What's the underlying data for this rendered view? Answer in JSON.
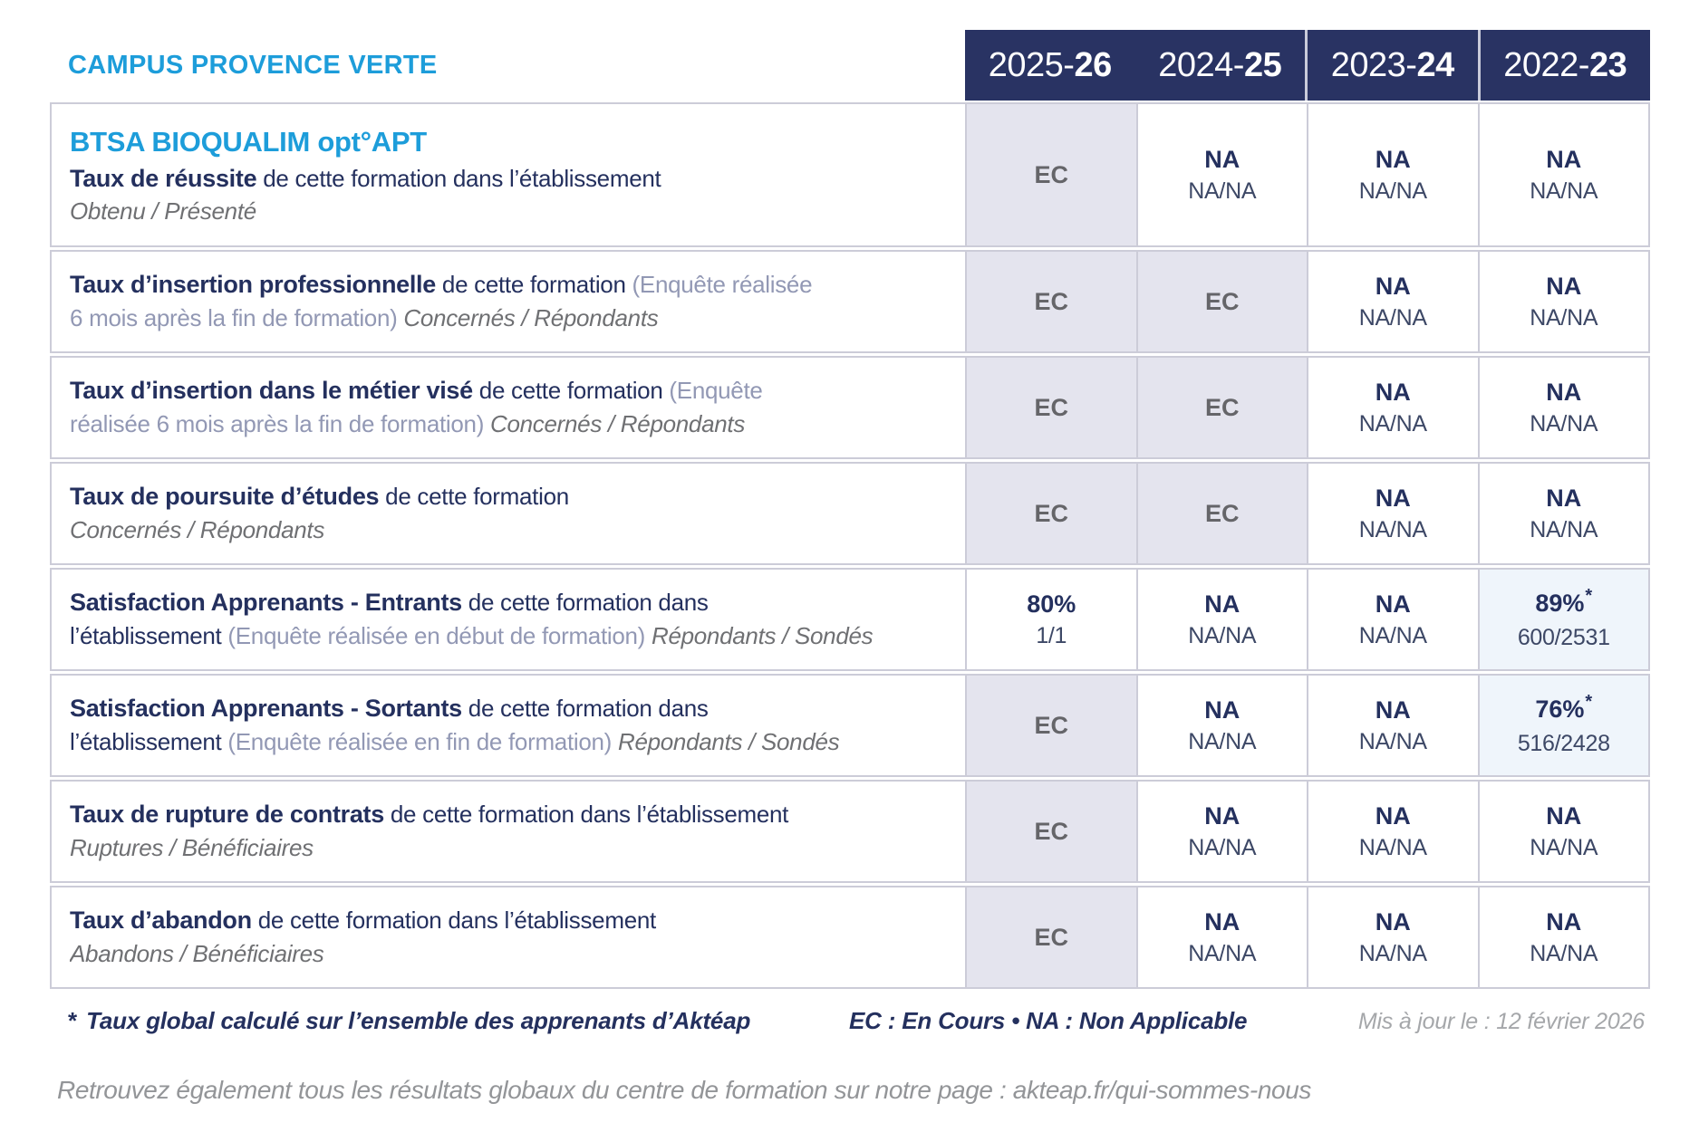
{
  "header": {
    "campus": "CAMPUS PROVENCE VERTE",
    "years": [
      {
        "prefix": "2025-",
        "bold": "26",
        "separated": false
      },
      {
        "prefix": "2024-",
        "bold": "25",
        "separated": false
      },
      {
        "prefix": "2023-",
        "bold": "24",
        "separated": true
      },
      {
        "prefix": "2022-",
        "bold": "23",
        "separated": true
      }
    ]
  },
  "program": "BTSA BIOQUALIM opt°APT",
  "rows": [
    {
      "id": "taux-de-reussite",
      "lines": [
        [
          {
            "s": "prog",
            "t": "BTSA BIOQUALIM opt°APT"
          }
        ],
        [
          {
            "s": "b",
            "t": "Taux de réussite"
          },
          {
            "s": "n",
            "t": " de cette formation dans l’établissement"
          }
        ],
        [
          {
            "s": "i",
            "t": "Obtenu / Présenté"
          }
        ]
      ],
      "cells": [
        {
          "v": "EC",
          "bg": "ec"
        },
        {
          "v": "NA",
          "d": "NA/NA"
        },
        {
          "v": "NA",
          "d": "NA/NA"
        },
        {
          "v": "NA",
          "d": "NA/NA"
        }
      ]
    },
    {
      "id": "taux-insertion-professionnelle",
      "lines": [
        [
          {
            "s": "b",
            "t": "Taux d’insertion professionnelle"
          },
          {
            "s": "n",
            "t": " de cette formation "
          },
          {
            "s": "p",
            "t": "(Enquête réalisée"
          }
        ],
        [
          {
            "s": "p",
            "t": "6 mois après la fin de formation) "
          },
          {
            "s": "i",
            "t": "Concernés / Répondants"
          }
        ]
      ],
      "cells": [
        {
          "v": "EC",
          "bg": "ec"
        },
        {
          "v": "EC",
          "bg": "ec"
        },
        {
          "v": "NA",
          "d": "NA/NA"
        },
        {
          "v": "NA",
          "d": "NA/NA"
        }
      ]
    },
    {
      "id": "taux-insertion-metier-vise",
      "lines": [
        [
          {
            "s": "b",
            "t": "Taux d’insertion dans le métier visé"
          },
          {
            "s": "n",
            "t": " de cette formation "
          },
          {
            "s": "p",
            "t": "(Enquête"
          }
        ],
        [
          {
            "s": "p",
            "t": "réalisée 6 mois après la fin de formation) "
          },
          {
            "s": "i",
            "t": "Concernés / Répondants"
          }
        ]
      ],
      "cells": [
        {
          "v": "EC",
          "bg": "ec"
        },
        {
          "v": "EC",
          "bg": "ec"
        },
        {
          "v": "NA",
          "d": "NA/NA"
        },
        {
          "v": "NA",
          "d": "NA/NA"
        }
      ]
    },
    {
      "id": "taux-poursuite-etudes",
      "lines": [
        [
          {
            "s": "b",
            "t": "Taux de poursuite d’études"
          },
          {
            "s": "n",
            "t": " de cette formation"
          }
        ],
        [
          {
            "s": "i",
            "t": "Concernés / Répondants"
          }
        ]
      ],
      "cells": [
        {
          "v": "EC",
          "bg": "ec"
        },
        {
          "v": "EC",
          "bg": "ec"
        },
        {
          "v": "NA",
          "d": "NA/NA"
        },
        {
          "v": "NA",
          "d": "NA/NA"
        }
      ]
    },
    {
      "id": "satisfaction-apprenants-entrants",
      "lines": [
        [
          {
            "s": "b",
            "t": "Satisfaction Apprenants - Entrants"
          },
          {
            "s": "n",
            "t": " de cette formation dans"
          }
        ],
        [
          {
            "s": "n",
            "t": "l’établissement "
          },
          {
            "s": "p",
            "t": "(Enquête réalisée en début de formation) "
          },
          {
            "s": "i",
            "t": "Répondants / Sondés"
          }
        ]
      ],
      "cells": [
        {
          "v": "80%",
          "d": "1/1"
        },
        {
          "v": "NA",
          "d": "NA/NA"
        },
        {
          "v": "NA",
          "d": "NA/NA"
        },
        {
          "v": "89%",
          "d": "600/2531",
          "bg": "hl",
          "star": true
        }
      ]
    },
    {
      "id": "satisfaction-apprenants-sortants",
      "lines": [
        [
          {
            "s": "b",
            "t": "Satisfaction Apprenants - Sortants"
          },
          {
            "s": "n",
            "t": " de cette formation dans"
          }
        ],
        [
          {
            "s": "n",
            "t": "l’établissement "
          },
          {
            "s": "p",
            "t": "(Enquête réalisée en fin de formation) "
          },
          {
            "s": "i",
            "t": "Répondants / Sondés"
          }
        ]
      ],
      "cells": [
        {
          "v": "EC",
          "bg": "ec"
        },
        {
          "v": "NA",
          "d": "NA/NA"
        },
        {
          "v": "NA",
          "d": "NA/NA"
        },
        {
          "v": "76%",
          "d": "516/2428",
          "bg": "hl",
          "star": true
        }
      ]
    },
    {
      "id": "taux-rupture-contrats",
      "lines": [
        [
          {
            "s": "b",
            "t": "Taux de rupture de contrats"
          },
          {
            "s": "n",
            "t": " de cette formation dans l’établissement"
          }
        ],
        [
          {
            "s": "i",
            "t": "Ruptures / Bénéficiaires"
          }
        ]
      ],
      "cells": [
        {
          "v": "EC",
          "bg": "ec"
        },
        {
          "v": "NA",
          "d": "NA/NA"
        },
        {
          "v": "NA",
          "d": "NA/NA"
        },
        {
          "v": "NA",
          "d": "NA/NA"
        }
      ]
    },
    {
      "id": "taux-abandon",
      "lines": [
        [
          {
            "s": "b",
            "t": "Taux d’abandon"
          },
          {
            "s": "n",
            "t": " de cette formation dans l’établissement"
          }
        ],
        [
          {
            "s": "i",
            "t": "Abandons / Bénéficiaires"
          }
        ]
      ],
      "cells": [
        {
          "v": "EC",
          "bg": "ec"
        },
        {
          "v": "NA",
          "d": "NA/NA"
        },
        {
          "v": "NA",
          "d": "NA/NA"
        },
        {
          "v": "NA",
          "d": "NA/NA"
        }
      ]
    }
  ],
  "footer": {
    "star": "*",
    "note": "Taux global calculé sur l’ensemble des apprenants d’Aktéap",
    "legend": "EC : En Cours  •  NA : Non Applicable",
    "updated": "Mis à jour le : 12 février 2026",
    "bottom": "Retrouvez également tous les résultats globaux du centre de formation sur notre page : akteap.fr/qui-sommes-nous"
  },
  "colors": {
    "accent_blue": "#1D9DDA",
    "navy": "#24305E",
    "header_bg": "#293363",
    "cell_pending_bg": "#E4E4EE",
    "cell_highlight_bg": "#EFF5FB",
    "border": "#CCCCD8",
    "muted_gray": "#6F7073",
    "slate": "#9298B4",
    "detail": "#3D4866",
    "ec_text": "#656569",
    "footnote_gray": "#A5A7AA",
    "bottom_gray": "#939598"
  }
}
